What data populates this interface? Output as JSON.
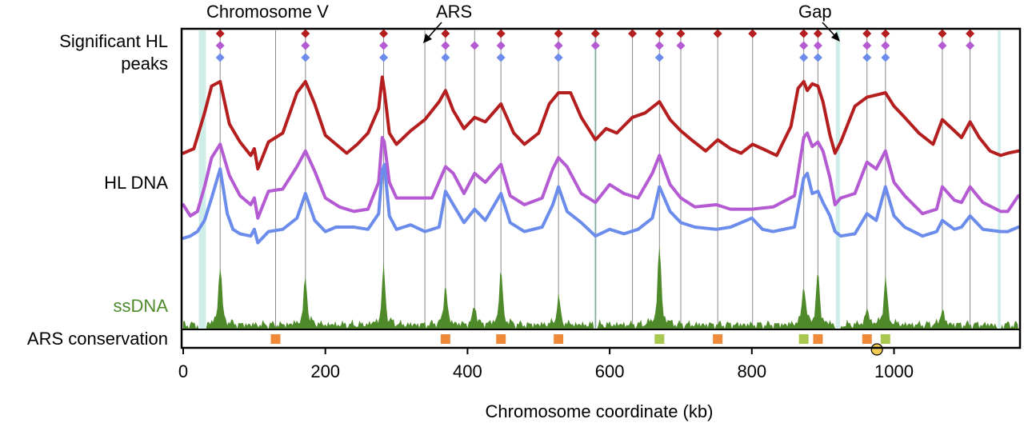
{
  "chart_data": {
    "type": "line",
    "xlabel": "Chromosome coordinate (kb)",
    "xlim": [
      0,
      1175
    ],
    "x_ticks": [
      0,
      200,
      400,
      600,
      800,
      1000
    ],
    "annotations": {
      "chromosome": "Chromosome V",
      "ars": "ARS",
      "gap": "Gap"
    },
    "row_labels": {
      "peaks_line1": "Significant HL",
      "peaks_line2": "peaks",
      "hl_dna": "HL DNA",
      "ssdna": "ssDNA",
      "ars_conservation": "ARS conservation"
    },
    "colors": {
      "red": "#b41e1e",
      "purple": "#b45ad2",
      "blue": "#6c8cec",
      "green": "#4e8a2a",
      "orange": "#ee8a3a",
      "lime": "#a8c850",
      "yellow": "#f2cc55",
      "gridline": "#8a8a8a",
      "gap": "#cfeeea"
    },
    "gap_regions": [
      [
        22,
        32
      ],
      [
        578,
        582
      ],
      [
        918,
        924
      ],
      [
        1146,
        1150
      ]
    ],
    "gridlines_kb": [
      52,
      130,
      172,
      282,
      340,
      369,
      410,
      447,
      528,
      580,
      632,
      670,
      700,
      752,
      801,
      873,
      893,
      962,
      988,
      1068,
      1107
    ],
    "hl_peaks": {
      "red": [
        52,
        172,
        282,
        369,
        447,
        528,
        580,
        632,
        670,
        700,
        752,
        801,
        873,
        893,
        962,
        988,
        1068,
        1107
      ],
      "purple": [
        52,
        172,
        282,
        369,
        410,
        447,
        528,
        580,
        670,
        700,
        873,
        893,
        962,
        988,
        1068,
        1107
      ],
      "blue": [
        52,
        172,
        282,
        369,
        447,
        528,
        670,
        873,
        893,
        962,
        988
      ]
    },
    "series": [
      {
        "color": "red",
        "x": [
          0,
          15,
          30,
          40,
          52,
          65,
          80,
          95,
          100,
          105,
          120,
          140,
          160,
          172,
          185,
          200,
          215,
          230,
          245,
          260,
          275,
          280,
          283,
          290,
          300,
          320,
          340,
          360,
          369,
          380,
          395,
          410,
          425,
          447,
          465,
          480,
          500,
          515,
          528,
          545,
          560,
          580,
          595,
          610,
          632,
          650,
          670,
          685,
          700,
          715,
          735,
          752,
          770,
          785,
          801,
          815,
          835,
          855,
          865,
          873,
          878,
          885,
          893,
          900,
          910,
          917,
          925,
          945,
          962,
          975,
          988,
          1000,
          1015,
          1035,
          1055,
          1068,
          1085,
          1095,
          1107,
          1120,
          1135,
          1150,
          1160,
          1175
        ],
        "y": [
          4.3,
          4.5,
          6.1,
          7.3,
          7.5,
          5.6,
          4.8,
          4.2,
          4.5,
          3.6,
          4.8,
          5.2,
          7.0,
          7.5,
          6.5,
          5.1,
          4.7,
          4.3,
          4.7,
          5.2,
          6.3,
          7.7,
          7.1,
          5.2,
          4.7,
          5.3,
          5.8,
          6.6,
          7.1,
          6.2,
          5.4,
          5.9,
          5.7,
          6.5,
          5.2,
          4.7,
          5.2,
          6.5,
          7.0,
          7.0,
          5.9,
          4.9,
          5.4,
          5.2,
          5.9,
          6.1,
          6.6,
          5.8,
          5.3,
          4.9,
          4.4,
          4.9,
          4.5,
          4.3,
          4.7,
          4.5,
          4.2,
          5.5,
          7.2,
          7.5,
          7.1,
          7.4,
          7.3,
          6.6,
          5.1,
          4.3,
          4.8,
          6.4,
          6.8,
          6.9,
          7.0,
          6.4,
          5.9,
          5.2,
          4.7,
          5.8,
          5.3,
          5.0,
          5.7,
          5.0,
          4.4,
          4.2,
          4.3,
          4.4
        ]
      },
      {
        "color": "purple",
        "x": [
          0,
          10,
          20,
          30,
          40,
          52,
          65,
          80,
          95,
          100,
          105,
          120,
          140,
          160,
          172,
          185,
          200,
          220,
          240,
          260,
          275,
          280,
          283,
          290,
          300,
          330,
          350,
          369,
          380,
          395,
          410,
          425,
          447,
          460,
          480,
          505,
          520,
          528,
          540,
          560,
          580,
          600,
          620,
          640,
          660,
          670,
          685,
          700,
          720,
          750,
          770,
          800,
          830,
          860,
          873,
          878,
          885,
          893,
          900,
          910,
          917,
          925,
          945,
          962,
          975,
          988,
          1000,
          1015,
          1040,
          1060,
          1068,
          1085,
          1095,
          1107,
          1125,
          1150,
          1160,
          1175
        ],
        "y": [
          2.0,
          1.5,
          1.7,
          2.8,
          4.1,
          4.7,
          3.3,
          2.4,
          2.0,
          2.3,
          1.4,
          2.6,
          2.7,
          3.7,
          4.4,
          3.5,
          2.3,
          1.9,
          1.7,
          1.8,
          3.0,
          5.0,
          4.8,
          3.0,
          2.3,
          2.3,
          2.3,
          3.7,
          3.4,
          2.5,
          3.4,
          3.0,
          3.8,
          2.4,
          2.0,
          2.3,
          3.6,
          4.1,
          3.7,
          2.5,
          2.1,
          2.9,
          2.5,
          2.3,
          3.4,
          4.2,
          2.9,
          2.3,
          1.9,
          2.0,
          1.8,
          1.8,
          1.9,
          2.4,
          5.0,
          5.2,
          4.6,
          4.8,
          4.4,
          3.2,
          2.0,
          2.3,
          2.5,
          3.9,
          3.6,
          4.4,
          3.0,
          2.4,
          1.6,
          1.8,
          2.8,
          2.2,
          2.1,
          2.8,
          2.1,
          1.7,
          1.7,
          2.4
        ]
      },
      {
        "color": "blue",
        "x": [
          0,
          10,
          20,
          30,
          40,
          52,
          62,
          70,
          80,
          95,
          100,
          105,
          120,
          140,
          160,
          172,
          185,
          200,
          215,
          240,
          260,
          275,
          280,
          283,
          290,
          300,
          320,
          340,
          360,
          369,
          380,
          395,
          410,
          425,
          447,
          460,
          480,
          505,
          520,
          528,
          540,
          560,
          580,
          600,
          620,
          640,
          660,
          670,
          685,
          700,
          720,
          750,
          770,
          800,
          815,
          830,
          860,
          873,
          878,
          885,
          893,
          900,
          910,
          917,
          925,
          945,
          962,
          975,
          988,
          1000,
          1015,
          1040,
          1060,
          1068,
          1085,
          1095,
          1107,
          1125,
          1150,
          1160,
          1175
        ],
        "y": [
          0.5,
          0.6,
          0.8,
          1.3,
          2.3,
          3.6,
          1.6,
          0.9,
          0.7,
          0.6,
          0.9,
          0.3,
          0.8,
          0.9,
          1.4,
          2.5,
          1.3,
          0.8,
          1.0,
          1.0,
          0.9,
          1.6,
          3.5,
          3.8,
          1.5,
          0.9,
          1.1,
          0.8,
          1.0,
          2.6,
          2.0,
          1.2,
          1.8,
          1.3,
          2.5,
          1.2,
          0.8,
          1.0,
          2.0,
          2.8,
          1.7,
          1.2,
          0.6,
          0.9,
          0.7,
          0.9,
          1.4,
          2.8,
          1.7,
          1.2,
          1.0,
          0.9,
          1.0,
          1.4,
          0.9,
          0.8,
          1.0,
          3.2,
          3.4,
          2.5,
          2.6,
          2.1,
          1.5,
          0.8,
          0.6,
          0.7,
          1.6,
          1.3,
          2.8,
          1.5,
          1.0,
          0.6,
          0.8,
          1.3,
          0.9,
          1.0,
          1.5,
          0.9,
          0.8,
          0.8,
          1.0
        ]
      }
    ],
    "ssdna": {
      "color": "green",
      "peaks": [
        {
          "x": 52,
          "h": 0.75
        },
        {
          "x": 172,
          "h": 0.6
        },
        {
          "x": 282,
          "h": 0.72
        },
        {
          "x": 369,
          "h": 0.5
        },
        {
          "x": 410,
          "h": 0.25
        },
        {
          "x": 447,
          "h": 0.68
        },
        {
          "x": 528,
          "h": 0.35
        },
        {
          "x": 670,
          "h": 1.0
        },
        {
          "x": 873,
          "h": 0.5
        },
        {
          "x": 893,
          "h": 0.65
        },
        {
          "x": 962,
          "h": 0.2
        },
        {
          "x": 988,
          "h": 0.6
        },
        {
          "x": 1068,
          "h": 0.2
        }
      ]
    },
    "ars_conservation": [
      {
        "x": 130,
        "color": "orange"
      },
      {
        "x": 369,
        "color": "orange"
      },
      {
        "x": 447,
        "color": "orange"
      },
      {
        "x": 528,
        "color": "orange"
      },
      {
        "x": 670,
        "color": "lime"
      },
      {
        "x": 752,
        "color": "orange"
      },
      {
        "x": 873,
        "color": "lime"
      },
      {
        "x": 893,
        "color": "orange"
      },
      {
        "x": 962,
        "color": "orange"
      },
      {
        "x": 988,
        "color": "lime"
      }
    ],
    "centromere_marker": {
      "x": 976,
      "color": "yellow"
    }
  }
}
